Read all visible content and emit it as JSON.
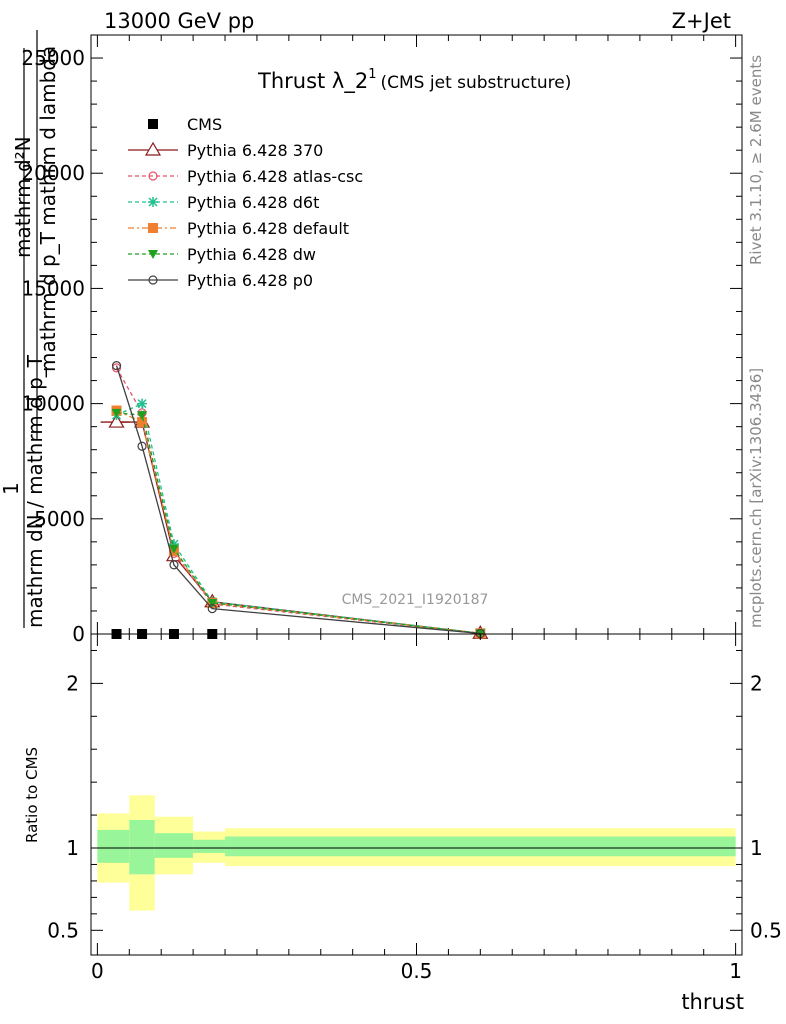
{
  "header": {
    "left": "13000 GeV pp",
    "right": "Z+Jet"
  },
  "side_labels": {
    "rivet": "Rivet 3.1.10, ≥ 2.6M events",
    "mcplots": "mcplots.cern.ch [arXiv:1306.3436]"
  },
  "watermark": "CMS_2021_I1920187",
  "chart_data": [
    {
      "type": "line",
      "panel": "main",
      "title": "Thrust λ_2",
      "title_sup": "1",
      "subtitle": "(CMS jet substructure)",
      "ylabel_line1": "mathrm d²N",
      "ylabel_line1_den": "mathrm d p_T mathrm d lambda",
      "ylabel_line2_num": "1",
      "ylabel_line2_den": "mathrm dN / mathrm d p_T",
      "ylim": [
        0,
        26000
      ],
      "xlim": [
        -0.01,
        1.01
      ],
      "yticks": [
        {
          "v": 0,
          "label": "0"
        },
        {
          "v": 5000,
          "label": "5000"
        },
        {
          "v": 10000,
          "label": "10000"
        },
        {
          "v": 15000,
          "label": "15000"
        },
        {
          "v": 20000,
          "label": "20000"
        },
        {
          "v": 25000,
          "label": "25000"
        }
      ],
      "series": [
        {
          "name": "CMS",
          "color": "#000000",
          "marker": "square-filled",
          "dash": "",
          "line": false,
          "x": [
            0.03,
            0.07,
            0.12,
            0.18
          ],
          "y": [
            0,
            0,
            0,
            0
          ]
        },
        {
          "name": "Pythia 6.428 370",
          "color": "#8b1a1a",
          "marker": "triangle-open",
          "dash": "",
          "x": [
            0.03,
            0.07,
            0.12,
            0.18,
            0.6
          ],
          "y": [
            9200,
            9200,
            3400,
            1400,
            30
          ],
          "xerr_first": [
            0.005,
            0.05
          ]
        },
        {
          "name": "Pythia 6.428 atlas-csc",
          "color": "#e8506a",
          "marker": "circle-open",
          "dash": "4,3",
          "x": [
            0.03,
            0.07,
            0.12,
            0.18,
            0.6
          ],
          "y": [
            11550,
            9600,
            3500,
            1300,
            25
          ]
        },
        {
          "name": "Pythia 6.428 d6t",
          "color": "#20c090",
          "marker": "star",
          "dash": "4,3",
          "x": [
            0.03,
            0.07,
            0.12,
            0.18,
            0.6
          ],
          "y": [
            9500,
            10000,
            3900,
            1400,
            30
          ]
        },
        {
          "name": "Pythia 6.428 default",
          "color": "#f08030",
          "marker": "square-filled",
          "dash": "6,3,2,3",
          "x": [
            0.03,
            0.07,
            0.12,
            0.18,
            0.6
          ],
          "y": [
            9700,
            9200,
            3600,
            1350,
            30
          ]
        },
        {
          "name": "Pythia 6.428 dw",
          "color": "#20a020",
          "marker": "triangle-down-filled",
          "dash": "4,3",
          "x": [
            0.03,
            0.07,
            0.12,
            0.18,
            0.6
          ],
          "y": [
            9600,
            9500,
            3700,
            1350,
            30
          ]
        },
        {
          "name": "Pythia 6.428 p0",
          "color": "#404040",
          "marker": "circle-open",
          "dash": "",
          "x": [
            0.03,
            0.07,
            0.12,
            0.18,
            0.6
          ],
          "y": [
            11650,
            8150,
            3000,
            1100,
            20
          ]
        }
      ]
    },
    {
      "type": "area",
      "panel": "ratio",
      "ylabel": "Ratio to CMS",
      "xlabel": "thrust",
      "ylim": [
        0.35,
        2.3
      ],
      "xlim": [
        -0.01,
        1.01
      ],
      "yticks": [
        {
          "v": 0.5,
          "label": "0.5"
        },
        {
          "v": 1,
          "label": "1"
        },
        {
          "v": 2,
          "label": "2"
        }
      ],
      "xticks": [
        {
          "v": 0,
          "label": "0"
        },
        {
          "v": 0.5,
          "label": "0.5"
        },
        {
          "v": 1,
          "label": "1"
        }
      ],
      "reference": 1,
      "bands": [
        {
          "x0": 0.0,
          "x1": 0.05,
          "inner": [
            0.91,
            1.11
          ],
          "outer": [
            0.79,
            1.21
          ]
        },
        {
          "x0": 0.05,
          "x1": 0.09,
          "inner": [
            0.84,
            1.17
          ],
          "outer": [
            0.62,
            1.32
          ]
        },
        {
          "x0": 0.09,
          "x1": 0.15,
          "inner": [
            0.94,
            1.09
          ],
          "outer": [
            0.84,
            1.19
          ]
        },
        {
          "x0": 0.15,
          "x1": 0.2,
          "inner": [
            0.97,
            1.05
          ],
          "outer": [
            0.91,
            1.1
          ]
        },
        {
          "x0": 0.2,
          "x1": 1.0,
          "inner": [
            0.95,
            1.07
          ],
          "outer": [
            0.89,
            1.12
          ]
        }
      ],
      "colors": {
        "inner": "#99f599",
        "outer": "#ffff99"
      }
    }
  ]
}
